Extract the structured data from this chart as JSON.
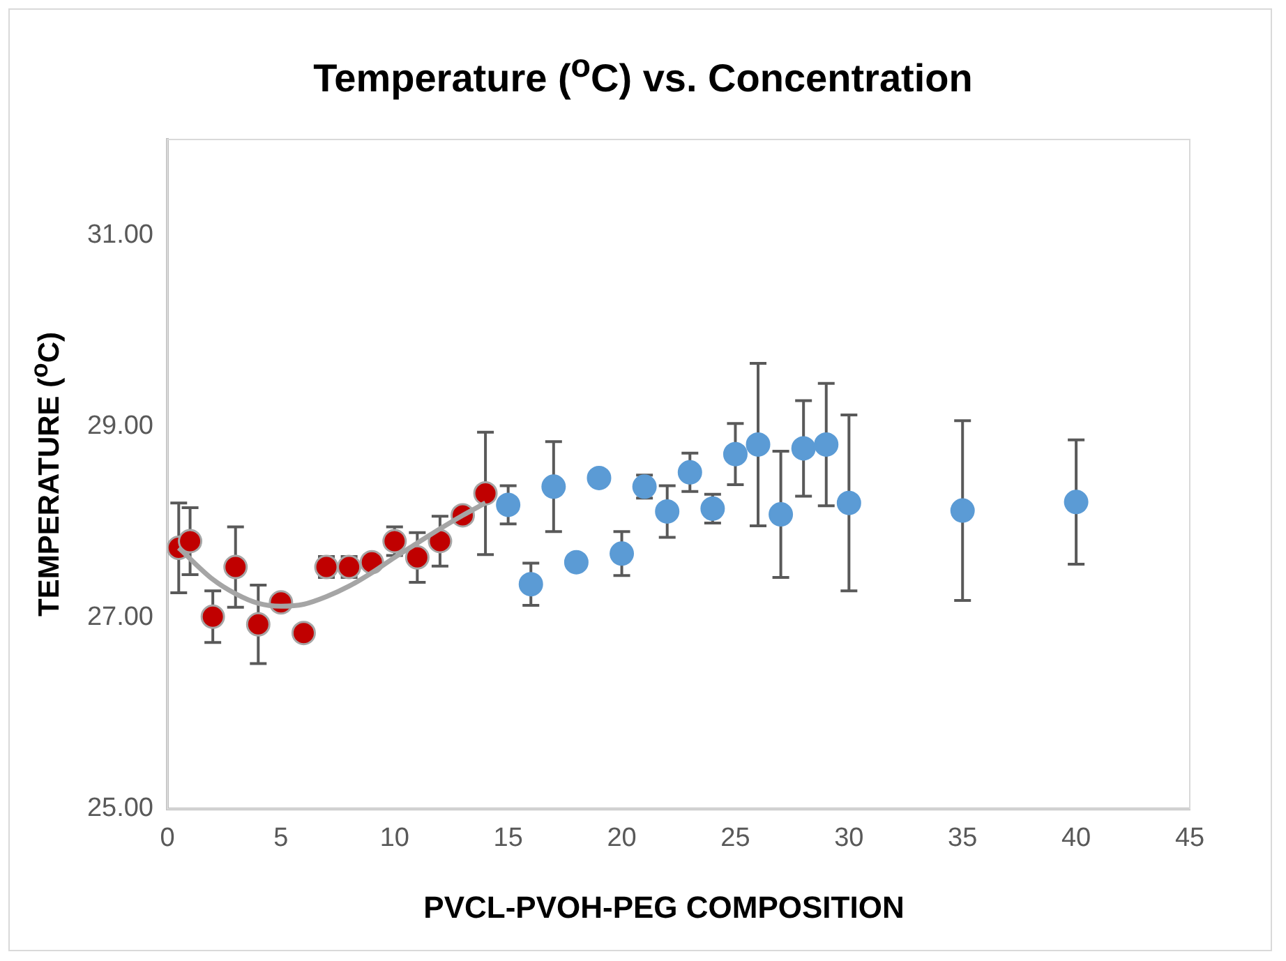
{
  "chart_data": {
    "type": "scatter",
    "title": "Temperature ($^{o}$C) vs. Concentration",
    "xlabel": "PVCL-PVOH-PEG COMPOSITION",
    "ylabel": "TEMPERATURE ($^{o}$C)",
    "xlim": [
      0,
      45
    ],
    "xticks": [
      0,
      5,
      10,
      15,
      20,
      25,
      30,
      35,
      40,
      45
    ],
    "ylim": [
      25,
      32
    ],
    "yticks": [
      {
        "value": 25,
        "label": "25.00"
      },
      {
        "value": 27,
        "label": "27.00"
      },
      {
        "value": 29,
        "label": "29.00"
      },
      {
        "value": 31,
        "label": "31.00"
      }
    ],
    "grid": false,
    "legend": false,
    "marker": "circle",
    "series": [
      {
        "color": "#c00000",
        "x": [
          0.5,
          1,
          2,
          3,
          4,
          5,
          6,
          7,
          8,
          9,
          10,
          11,
          12,
          13,
          14
        ],
        "values": [
          27.73,
          27.8,
          27.01,
          27.53,
          26.93,
          27.16,
          26.84,
          27.53,
          27.53,
          27.58,
          27.8,
          27.63,
          27.8,
          28.07,
          28.3
        ],
        "errors": [
          0.47,
          0.35,
          0.27,
          0.42,
          0.41,
          null,
          null,
          0.11,
          0.11,
          null,
          0.15,
          0.26,
          0.26,
          null,
          0.64
        ]
      },
      {
        "color": "#5b9bd5",
        "x": [
          15,
          16,
          17,
          18,
          19,
          20,
          21,
          22,
          23,
          24,
          25,
          26,
          27,
          28,
          29,
          30,
          35,
          40
        ],
        "values": [
          28.18,
          27.35,
          28.37,
          27.58,
          28.46,
          27.67,
          28.37,
          28.11,
          28.52,
          28.14,
          28.71,
          28.81,
          28.08,
          28.77,
          28.81,
          28.2,
          28.12,
          28.21
        ],
        "errors": [
          0.2,
          0.22,
          0.47,
          null,
          null,
          0.23,
          0.12,
          0.27,
          0.2,
          0.15,
          0.32,
          0.85,
          0.66,
          0.5,
          0.64,
          0.92,
          0.94,
          0.65
        ]
      },
      {
        "type": "line",
        "color": "#a5a5a5",
        "marker": "none",
        "line_style": "solid",
        "x": [
          0.5,
          2,
          3,
          4,
          5,
          6,
          7,
          8,
          9,
          10,
          11,
          12,
          13,
          14
        ],
        "values": [
          27.73,
          27.4,
          27.25,
          27.15,
          27.12,
          27.14,
          27.22,
          27.33,
          27.47,
          27.63,
          27.78,
          27.93,
          28.07,
          28.2
        ]
      }
    ]
  }
}
